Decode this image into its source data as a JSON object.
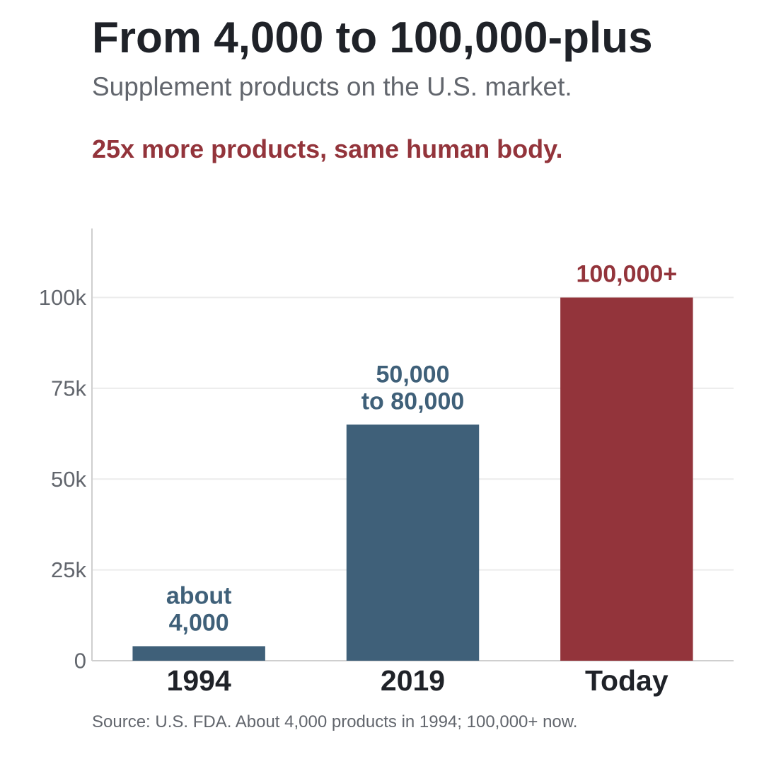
{
  "header": {
    "title": "From 4,000 to 100,000-plus",
    "subtitle": "Supplement products on the U.S. market.",
    "highlight": "25x more products, same human body."
  },
  "footer": {
    "source": "Source: U.S. FDA. About 4,000 products in 1994; 100,000+ now."
  },
  "colors": {
    "primary": "#3f6079",
    "accent": "#93343b",
    "text_dark": "#1f2228",
    "text_muted": "#62666d",
    "grid": "#ececec",
    "axis": "#cfcfcf"
  },
  "chart_data": {
    "type": "bar",
    "title": "From 4,000 to 100,000-plus",
    "subtitle": "Supplement products on the U.S. market.",
    "categories": [
      "1994",
      "2019",
      "Today"
    ],
    "values": [
      4000,
      65000,
      100000
    ],
    "data_labels": [
      [
        "about",
        "4,000"
      ],
      [
        "50,000",
        "to 80,000"
      ],
      [
        "100,000+"
      ]
    ],
    "bar_colors": [
      "#3f6079",
      "#3f6079",
      "#93343b"
    ],
    "ylim": [
      0,
      119000
    ],
    "yticks": [
      0,
      25000,
      50000,
      75000,
      100000
    ],
    "ytick_labels": [
      "0",
      "25k",
      "50k",
      "75k",
      "100k"
    ],
    "xlabel": "",
    "ylabel": "",
    "grid": true,
    "legend": "none"
  }
}
